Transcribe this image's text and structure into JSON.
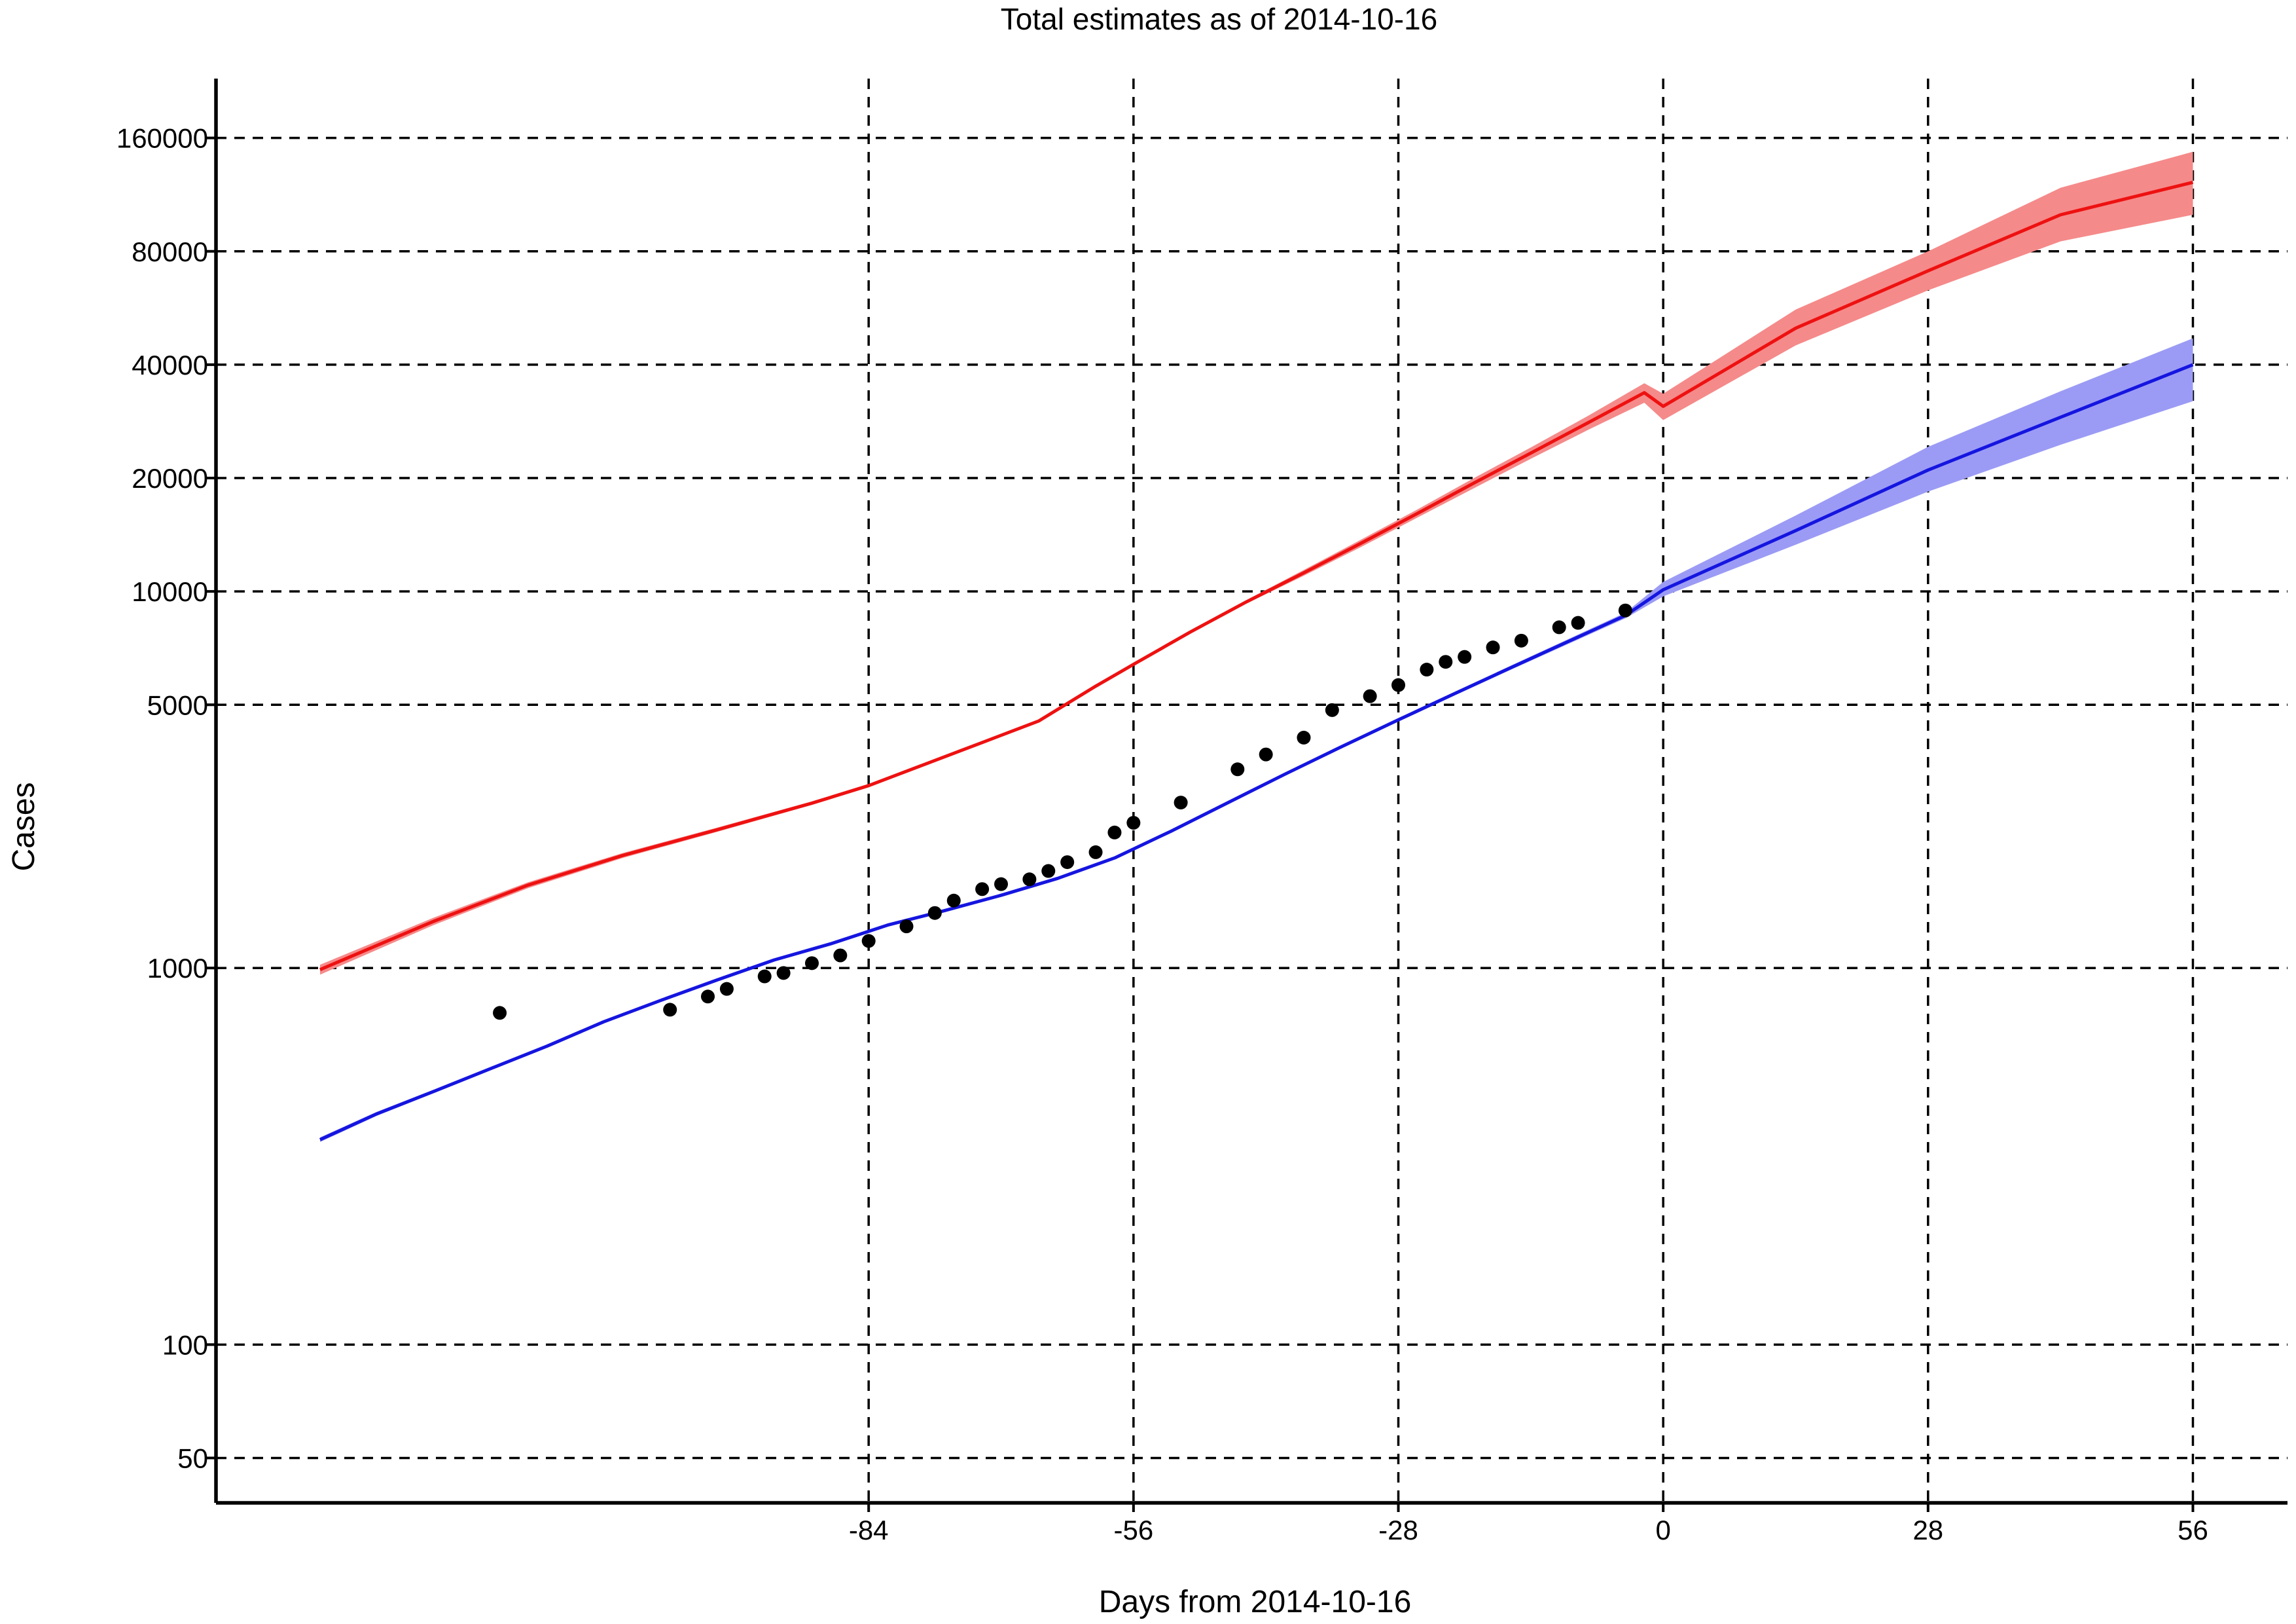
{
  "chart_data": {
    "type": "line",
    "title": "Total estimates as of 2014-10-16",
    "xlabel": "Days from 2014-10-16",
    "ylabel": "Cases",
    "y_scale": "log",
    "xlim": [
      -153,
      66
    ],
    "ylim": [
      38,
      230000
    ],
    "grid": true,
    "x_ticks": [
      -84,
      -56,
      -28,
      0,
      28,
      56
    ],
    "y_ticks": [
      50,
      100,
      1000,
      5000,
      10000,
      20000,
      40000,
      80000,
      160000
    ],
    "series": [
      {
        "style": "line",
        "color": "#ee1111",
        "band_color": "#f58a8a",
        "x": [
          -142,
          -130,
          -120,
          -110,
          -100,
          -90,
          -84,
          -78,
          -72,
          -66,
          -60,
          -56,
          -50,
          -44,
          -38,
          -32,
          -26,
          -20,
          -14,
          -8,
          -2,
          0,
          14,
          28,
          42,
          56
        ],
        "y": [
          990,
          1330,
          1660,
          1990,
          2330,
          2740,
          3050,
          3480,
          3970,
          4530,
          5600,
          6400,
          7800,
          9400,
          11200,
          13400,
          16100,
          19400,
          23300,
          28000,
          33700,
          31000,
          50000,
          71000,
          100000,
          122000
        ],
        "lower": [
          960,
          1300,
          1630,
          1960,
          2300,
          2710,
          3020,
          3450,
          3940,
          4500,
          5560,
          6350,
          7720,
          9300,
          11000,
          13100,
          15700,
          18800,
          22500,
          26800,
          31700,
          28500,
          45000,
          63000,
          85000,
          100000
        ],
        "upper": [
          1020,
          1360,
          1690,
          2020,
          2360,
          2770,
          3080,
          3510,
          4000,
          4560,
          5640,
          6450,
          7880,
          9500,
          11400,
          13700,
          16500,
          20000,
          24100,
          29200,
          35700,
          33500,
          56000,
          80000,
          118000,
          147000
        ]
      },
      {
        "style": "line",
        "color": "#1515e0",
        "band_color": "#9b9bf5",
        "x": [
          -142,
          -136,
          -130,
          -124,
          -118,
          -112,
          -106,
          -100,
          -94,
          -88,
          -82,
          -76,
          -70,
          -64,
          -58,
          -52,
          -46,
          -40,
          -34,
          -28,
          -22,
          -16,
          -10,
          -4,
          0,
          14,
          28,
          42,
          56
        ],
        "y": [
          350,
          410,
          470,
          540,
          620,
          720,
          820,
          930,
          1050,
          1160,
          1300,
          1420,
          1560,
          1730,
          1960,
          2310,
          2750,
          3270,
          3870,
          4560,
          5360,
          6290,
          7370,
          8630,
          10100,
          14500,
          21000,
          29000,
          40000
        ],
        "lower": [
          345,
          405,
          465,
          535,
          615,
          715,
          815,
          925,
          1045,
          1155,
          1295,
          1415,
          1555,
          1725,
          1950,
          2295,
          2730,
          3240,
          3830,
          4510,
          5300,
          6210,
          7260,
          8480,
          9700,
          13300,
          18400,
          24500,
          32000
        ],
        "upper": [
          355,
          415,
          475,
          545,
          625,
          725,
          825,
          935,
          1055,
          1165,
          1305,
          1425,
          1565,
          1735,
          1970,
          2325,
          2770,
          3300,
          3910,
          4610,
          5420,
          6370,
          7480,
          8780,
          10600,
          15900,
          24200,
          34000,
          47000
        ]
      },
      {
        "style": "scatter",
        "color": "#000000",
        "x": [
          -123,
          -105,
          -101,
          -99,
          -95,
          -93,
          -90,
          -87,
          -84,
          -80,
          -77,
          -75,
          -72,
          -70,
          -67,
          -65,
          -63,
          -60,
          -58,
          -56,
          -51,
          -45,
          -42,
          -38,
          -35,
          -31,
          -28,
          -25,
          -23,
          -21,
          -18,
          -15,
          -11,
          -9,
          -4
        ],
        "y": [
          760,
          775,
          840,
          880,
          950,
          970,
          1030,
          1080,
          1180,
          1290,
          1400,
          1510,
          1620,
          1670,
          1720,
          1810,
          1910,
          2030,
          2290,
          2430,
          2750,
          3370,
          3690,
          4090,
          4840,
          5270,
          5640,
          6200,
          6500,
          6700,
          7100,
          7400,
          8030,
          8250,
          8900
        ]
      }
    ]
  }
}
